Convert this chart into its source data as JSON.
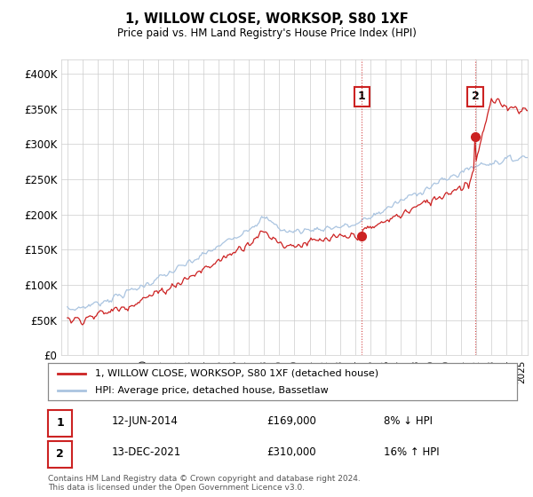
{
  "title": "1, WILLOW CLOSE, WORKSOP, S80 1XF",
  "subtitle": "Price paid vs. HM Land Registry's House Price Index (HPI)",
  "ylim": [
    0,
    420000
  ],
  "yticks": [
    0,
    50000,
    100000,
    150000,
    200000,
    250000,
    300000,
    350000,
    400000
  ],
  "ytick_labels": [
    "£0",
    "£50K",
    "£100K",
    "£150K",
    "£200K",
    "£250K",
    "£300K",
    "£350K",
    "£400K"
  ],
  "hpi_color": "#aac4e0",
  "price_color": "#cc2222",
  "dashed_line_color": "#cc2222",
  "transaction1_year": 2014.45,
  "transaction1_price": 169000,
  "transaction2_year": 2021.95,
  "transaction2_price": 310000,
  "legend_red_label": "1, WILLOW CLOSE, WORKSOP, S80 1XF (detached house)",
  "legend_blue_label": "HPI: Average price, detached house, Bassetlaw",
  "footer": "Contains HM Land Registry data © Crown copyright and database right 2024.\nThis data is licensed under the Open Government Licence v3.0.",
  "transaction1_date": "12-JUN-2014",
  "transaction1_pct": "8% ↓ HPI",
  "transaction2_date": "13-DEC-2021",
  "transaction2_pct": "16% ↑ HPI",
  "background_color": "#ffffff",
  "plot_bg_color": "#ffffff"
}
